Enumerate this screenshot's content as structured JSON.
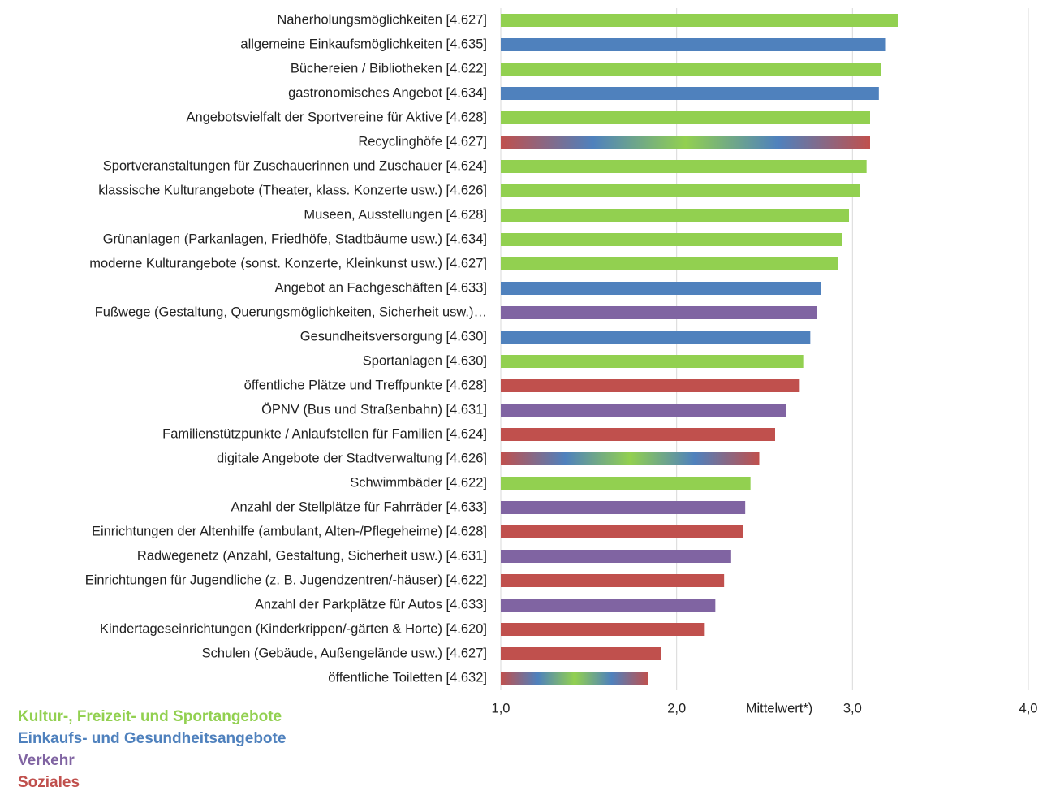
{
  "chart_data": {
    "type": "bar",
    "orientation": "horizontal",
    "x_label": "Mittelwert*)",
    "categories": [
      "Naherholungsmöglichkeiten [4.627]",
      "allgemeine Einkaufsmöglichkeiten [4.635]",
      "Büchereien / Bibliotheken [4.622]",
      "gastronomisches Angebot [4.634]",
      "Angebotsvielfalt der Sportvereine für Aktive [4.628]",
      "Recyclinghöfe [4.627]",
      "Sportveranstaltungen für Zuschauerinnen und Zuschauer [4.624]",
      "klassische Kulturangebote (Theater, klass. Konzerte usw.) [4.626]",
      "Museen, Ausstellungen [4.628]",
      "Grünanlagen (Parkanlagen, Friedhöfe, Stadtbäume usw.) [4.634]",
      "moderne Kulturangebote (sonst. Konzerte, Kleinkunst usw.) [4.627]",
      "Angebot an Fachgeschäften [4.633]",
      "Fußwege (Gestaltung, Querungsmöglichkeiten, Sicherheit usw.)…",
      "Gesundheitsversorgung [4.630]",
      "Sportanlagen [4.630]",
      "öffentliche Plätze und Treffpunkte [4.628]",
      "ÖPNV (Bus und Straßenbahn) [4.631]",
      "Familienstützpunkte / Anlaufstellen für Familien [4.624]",
      "digitale Angebote der Stadtverwaltung [4.626]",
      "Schwimmbäder [4.622]",
      "Anzahl der Stellplätze für Fahrräder [4.633]",
      "Einrichtungen der Altenhilfe (ambulant, Alten-/Pflegeheime) [4.628]",
      "Radwegenetz (Anzahl, Gestaltung, Sicherheit usw.) [4.631]",
      "Einrichtungen für Jugendliche (z. B. Jugendzentren/-häuser) [4.622]",
      "Anzahl der Parkplätze für Autos [4.633]",
      "Kindertageseinrichtungen (Kinderkrippen/-gärten & Horte) [4.620]",
      "Schulen (Gebäude, Außengelände usw.) [4.627]",
      "öffentliche Toiletten [4.632]"
    ],
    "values": [
      3.26,
      3.19,
      3.16,
      3.15,
      3.1,
      3.1,
      3.08,
      3.04,
      2.98,
      2.94,
      2.92,
      2.82,
      2.8,
      2.76,
      2.72,
      2.7,
      2.62,
      2.56,
      2.47,
      2.42,
      2.39,
      2.38,
      2.31,
      2.27,
      2.22,
      2.16,
      1.91,
      1.84
    ],
    "colors": [
      "#92d050",
      "#4f81bd",
      "#92d050",
      "#4f81bd",
      "#92d050",
      [
        "#c0504d",
        "#4f81bd",
        "#92d050",
        "#4f81bd",
        "#c0504d"
      ],
      "#92d050",
      "#92d050",
      "#92d050",
      "#92d050",
      "#92d050",
      "#4f81bd",
      "#8064a2",
      "#4f81bd",
      "#92d050",
      "#c0504d",
      "#8064a2",
      "#c0504d",
      [
        "#c0504d",
        "#4f81bd",
        "#92d050",
        "#4f81bd",
        "#c0504d"
      ],
      "#92d050",
      "#8064a2",
      "#c0504d",
      "#8064a2",
      "#c0504d",
      "#8064a2",
      "#c0504d",
      "#c0504d",
      [
        "#c0504d",
        "#4f81bd",
        "#92d050",
        "#4f81bd",
        "#c0504d"
      ]
    ],
    "xlim": [
      1,
      4
    ],
    "xticks": [
      {
        "value": 1,
        "label": "1,0"
      },
      {
        "value": 2,
        "label": "2,0"
      },
      {
        "value": 3,
        "label": "3,0"
      },
      {
        "value": 4,
        "label": "4,0"
      }
    ],
    "grid": true,
    "legend": [
      {
        "name": "Kultur-, Freizeit- und Sportangebote",
        "color": "#92d050"
      },
      {
        "name": "Einkaufs- und Gesundheitsangebote",
        "color": "#4f81bd"
      },
      {
        "name": "Verkehr",
        "color": "#8064a2"
      },
      {
        "name": "Soziales",
        "color": "#c0504d"
      }
    ]
  }
}
